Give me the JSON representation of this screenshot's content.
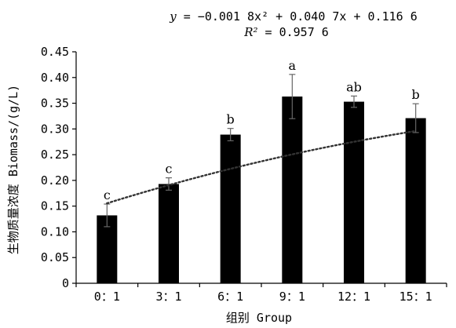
{
  "chart_data": {
    "type": "bar",
    "categories": [
      "0：1",
      "3：1",
      "6：1",
      "9：1",
      "12：1",
      "15：1"
    ],
    "values": [
      0.132,
      0.193,
      0.289,
      0.363,
      0.353,
      0.321
    ],
    "errors": [
      0.022,
      0.012,
      0.012,
      0.043,
      0.011,
      0.028
    ],
    "significance": [
      "c",
      "c",
      "b",
      "a",
      "ab",
      "b"
    ],
    "xlabel": "组别 Group",
    "ylabel": "生物质量浓度 Biomass/(g/L)",
    "ylim": [
      0,
      0.45
    ],
    "yticks": [
      "0",
      "0.05",
      "0.10",
      "0.15",
      "0.20",
      "0.25",
      "0.30",
      "0.35",
      "0.40",
      "0.45"
    ],
    "trendline": {
      "type": "polynomial",
      "coefficients": [
        -0.0018,
        0.0407,
        0.1166
      ],
      "style": "dotted"
    },
    "equation": {
      "y_var": "y",
      "eq_rest": " = −0.001 8x² + 0.040 7x + 0.116 6",
      "r2_var": "R²",
      "r2_rest": " = 0.957 6"
    },
    "colors": {
      "bar": "#000000",
      "error_bar": "#666666",
      "trend": "#333333"
    }
  }
}
